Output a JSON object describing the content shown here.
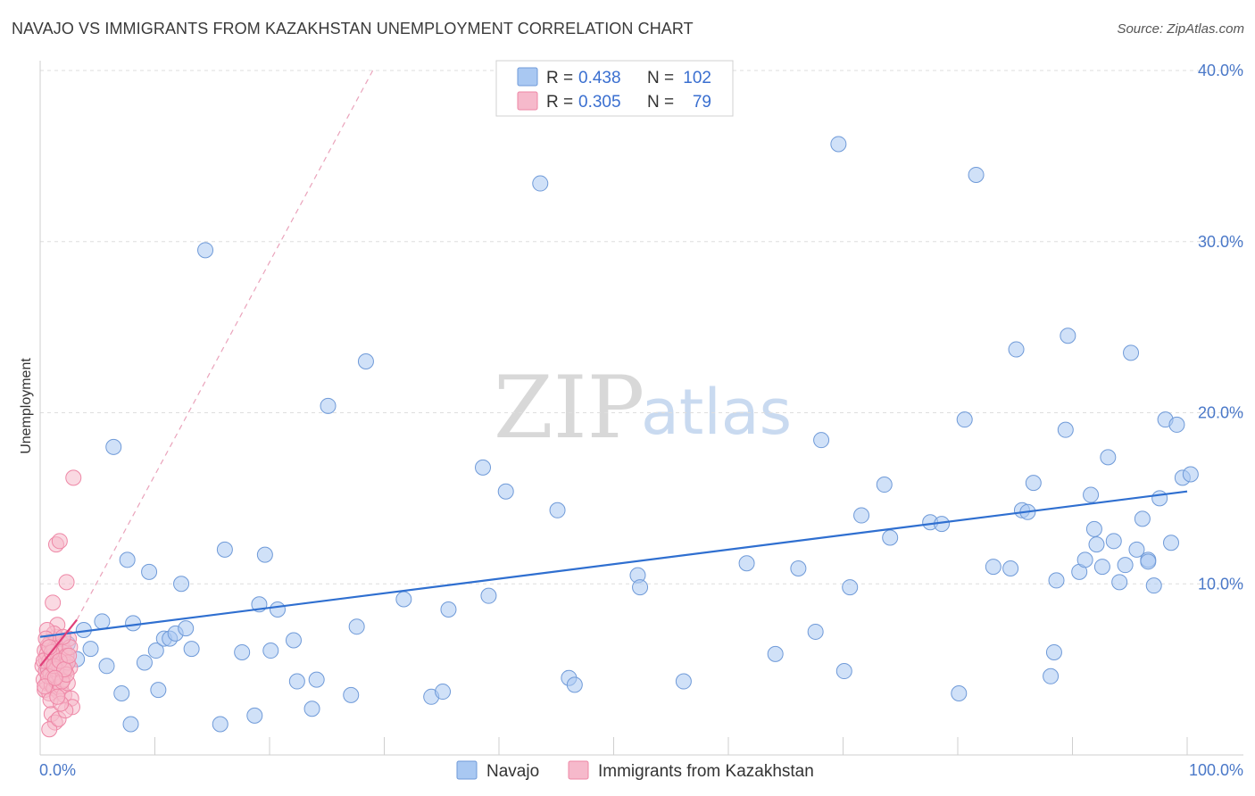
{
  "header": {
    "title": "NAVAJO VS IMMIGRANTS FROM KAZAKHSTAN UNEMPLOYMENT CORRELATION CHART",
    "source": "Source: ZipAtlas.com"
  },
  "watermark": {
    "zip": "ZIP",
    "atlas": "atlas"
  },
  "legend": {
    "rows": [
      {
        "r_label": "R =",
        "r_value": "0.438",
        "n_label": "N =",
        "n_value": "102",
        "color": "#a9c8f2"
      },
      {
        "r_label": "R =",
        "r_value": "0.305",
        "n_label": "N =",
        "n_value": "79",
        "color": "#f6b9cb"
      }
    ]
  },
  "bottom_legend": [
    {
      "label": "Navajo",
      "color": "#a9c8f2"
    },
    {
      "label": "Immigrants from Kazakhstan",
      "color": "#f6b9cb"
    }
  ],
  "chart_data": {
    "type": "scatter",
    "title": "NAVAJO VS IMMIGRANTS FROM KAZAKHSTAN UNEMPLOYMENT CORRELATION CHART",
    "xlabel": "",
    "ylabel": "Unemployment",
    "xlim": [
      0,
      100
    ],
    "ylim": [
      0,
      40
    ],
    "x_tick_labels": [
      "0.0%",
      "100.0%"
    ],
    "y_ticks": [
      10,
      20,
      30,
      40
    ],
    "y_tick_labels": [
      "10.0%",
      "20.0%",
      "30.0%",
      "40.0%"
    ],
    "grid": true,
    "series": [
      {
        "name": "Navajo",
        "color": "#a9c8f2",
        "stroke": "#6f9ad8",
        "trend": {
          "x": [
            0,
            100
          ],
          "y": [
            6.9,
            15.4
          ],
          "color": "#2f6fd0",
          "style": "solid"
        },
        "points": [
          [
            0.6,
            5.1
          ],
          [
            2.4,
            6.5
          ],
          [
            3.2,
            5.6
          ],
          [
            3.8,
            7.3
          ],
          [
            4.4,
            6.2
          ],
          [
            5.4,
            7.8
          ],
          [
            5.8,
            5.2
          ],
          [
            6.4,
            18
          ],
          [
            7.1,
            3.6
          ],
          [
            7.6,
            11.4
          ],
          [
            7.9,
            1.8
          ],
          [
            8.1,
            7.7
          ],
          [
            9.1,
            5.4
          ],
          [
            9.5,
            10.7
          ],
          [
            10.1,
            6.1
          ],
          [
            10.3,
            3.8
          ],
          [
            10.8,
            6.8
          ],
          [
            11.3,
            6.8
          ],
          [
            11.8,
            7.1
          ],
          [
            12.3,
            10
          ],
          [
            12.7,
            7.4
          ],
          [
            13.2,
            6.2
          ],
          [
            14.4,
            29.5
          ],
          [
            15.7,
            1.8
          ],
          [
            16.1,
            12
          ],
          [
            17.6,
            6
          ],
          [
            18.7,
            2.3
          ],
          [
            19.1,
            8.8
          ],
          [
            19.6,
            11.7
          ],
          [
            20.1,
            6.1
          ],
          [
            20.7,
            8.5
          ],
          [
            22.1,
            6.7
          ],
          [
            22.4,
            4.3
          ],
          [
            23.7,
            2.7
          ],
          [
            24.1,
            4.4
          ],
          [
            25.1,
            20.4
          ],
          [
            27.1,
            3.5
          ],
          [
            27.6,
            7.5
          ],
          [
            28.4,
            23
          ],
          [
            31.7,
            9.1
          ],
          [
            34.1,
            3.4
          ],
          [
            35.1,
            3.7
          ],
          [
            35.6,
            8.5
          ],
          [
            38.6,
            16.8
          ],
          [
            39.1,
            9.3
          ],
          [
            40.6,
            15.4
          ],
          [
            43.6,
            33.4
          ],
          [
            45.1,
            14.3
          ],
          [
            46.1,
            4.5
          ],
          [
            46.6,
            4.1
          ],
          [
            52.1,
            10.5
          ],
          [
            52.3,
            9.8
          ],
          [
            56.1,
            4.3
          ],
          [
            61.6,
            11.2
          ],
          [
            64.1,
            5.9
          ],
          [
            66.1,
            10.9
          ],
          [
            67.6,
            7.2
          ],
          [
            68.1,
            18.4
          ],
          [
            69.6,
            35.7
          ],
          [
            70.1,
            4.9
          ],
          [
            70.6,
            9.8
          ],
          [
            71.6,
            14
          ],
          [
            73.6,
            15.8
          ],
          [
            77.6,
            13.6
          ],
          [
            78.6,
            13.5
          ],
          [
            80.1,
            3.6
          ],
          [
            80.6,
            19.6
          ],
          [
            81.6,
            33.9
          ],
          [
            83.1,
            11
          ],
          [
            84.6,
            10.9
          ],
          [
            85.1,
            23.7
          ],
          [
            85.6,
            14.3
          ],
          [
            86.6,
            15.9
          ],
          [
            88.1,
            4.6
          ],
          [
            88.4,
            6
          ],
          [
            88.6,
            10.2
          ],
          [
            89.4,
            19
          ],
          [
            89.6,
            24.5
          ],
          [
            90.6,
            10.7
          ],
          [
            91.1,
            11.4
          ],
          [
            91.6,
            15.2
          ],
          [
            92.1,
            12.3
          ],
          [
            92.6,
            11
          ],
          [
            93.1,
            17.4
          ],
          [
            93.6,
            12.5
          ],
          [
            94.1,
            10.1
          ],
          [
            95.1,
            23.5
          ],
          [
            95.6,
            12
          ],
          [
            96.1,
            13.8
          ],
          [
            96.6,
            11.4
          ],
          [
            97.1,
            9.9
          ],
          [
            97.6,
            15
          ],
          [
            98.1,
            19.6
          ],
          [
            98.6,
            12.4
          ],
          [
            99.1,
            19.3
          ],
          [
            99.6,
            16.2
          ],
          [
            100.3,
            16.4
          ],
          [
            96.6,
            11.3
          ],
          [
            94.6,
            11.1
          ],
          [
            86.1,
            14.2
          ],
          [
            91.9,
            13.2
          ],
          [
            74.1,
            12.7
          ]
        ]
      },
      {
        "name": "Immigrants from Kazakhstan",
        "color": "#f6b9cb",
        "stroke": "#ee87a6",
        "trend": {
          "x": [
            0,
            3.2
          ],
          "y": [
            5.2,
            7.9
          ],
          "color": "#e0407a",
          "style": "solid",
          "dashed_extension": {
            "x": [
              3.2,
              29
            ],
            "y": [
              7.9,
              40
            ],
            "color": "#eaa3bb"
          }
        },
        "points": [
          [
            0.2,
            5.2
          ],
          [
            0.3,
            4.4
          ],
          [
            0.4,
            6.1
          ],
          [
            0.4,
            3.8
          ],
          [
            0.5,
            5.6
          ],
          [
            0.5,
            4.9
          ],
          [
            0.6,
            5.9
          ],
          [
            0.6,
            4.2
          ],
          [
            0.7,
            6.4
          ],
          [
            0.7,
            5.0
          ],
          [
            0.8,
            3.6
          ],
          [
            0.8,
            5.5
          ],
          [
            0.9,
            4.7
          ],
          [
            0.9,
            6.6
          ],
          [
            1.0,
            5.3
          ],
          [
            1.0,
            4.1
          ],
          [
            1.1,
            5.8
          ],
          [
            1.1,
            4.5
          ],
          [
            1.2,
            6.2
          ],
          [
            1.2,
            3.9
          ],
          [
            1.3,
            5.1
          ],
          [
            1.3,
            5.7
          ],
          [
            1.4,
            4.3
          ],
          [
            1.4,
            6.9
          ],
          [
            1.5,
            5.4
          ],
          [
            1.5,
            4.8
          ],
          [
            1.6,
            6.0
          ],
          [
            1.6,
            3.7
          ],
          [
            1.7,
            5.2
          ],
          [
            1.7,
            4.6
          ],
          [
            1.8,
            5.9
          ],
          [
            1.8,
            4.0
          ],
          [
            1.9,
            6.5
          ],
          [
            1.9,
            5.0
          ],
          [
            2.0,
            4.4
          ],
          [
            2.0,
            5.6
          ],
          [
            2.1,
            3.5
          ],
          [
            2.1,
            6.1
          ],
          [
            2.2,
            5.3
          ],
          [
            2.2,
            4.9
          ],
          [
            2.3,
            5.8
          ],
          [
            2.4,
            4.2
          ],
          [
            2.5,
            6.8
          ],
          [
            2.6,
            5.1
          ],
          [
            2.7,
            3.3
          ],
          [
            2.8,
            2.8
          ],
          [
            1.0,
            2.4
          ],
          [
            1.3,
            1.9
          ],
          [
            0.8,
            1.5
          ],
          [
            1.6,
            2.1
          ],
          [
            2.2,
            2.6
          ],
          [
            1.1,
            8.9
          ],
          [
            1.4,
            12.3
          ],
          [
            1.7,
            12.5
          ],
          [
            2.3,
            10.1
          ],
          [
            2.9,
            16.2
          ],
          [
            1.5,
            7.6
          ],
          [
            1.2,
            7.1
          ],
          [
            0.6,
            7.3
          ],
          [
            0.9,
            3.2
          ],
          [
            1.8,
            3.0
          ],
          [
            2.4,
            5.4
          ],
          [
            2.6,
            6.3
          ],
          [
            0.3,
            5.5
          ],
          [
            0.5,
            6.8
          ],
          [
            1.4,
            5.0
          ],
          [
            1.9,
            4.3
          ],
          [
            0.7,
            4.6
          ],
          [
            1.0,
            6.0
          ],
          [
            2.0,
            6.9
          ],
          [
            2.3,
            4.7
          ],
          [
            1.5,
            3.4
          ],
          [
            0.4,
            4.0
          ],
          [
            1.2,
            5.2
          ],
          [
            1.7,
            5.5
          ],
          [
            2.1,
            5.0
          ],
          [
            0.8,
            6.3
          ],
          [
            1.3,
            4.5
          ],
          [
            2.5,
            5.8
          ]
        ]
      }
    ]
  }
}
